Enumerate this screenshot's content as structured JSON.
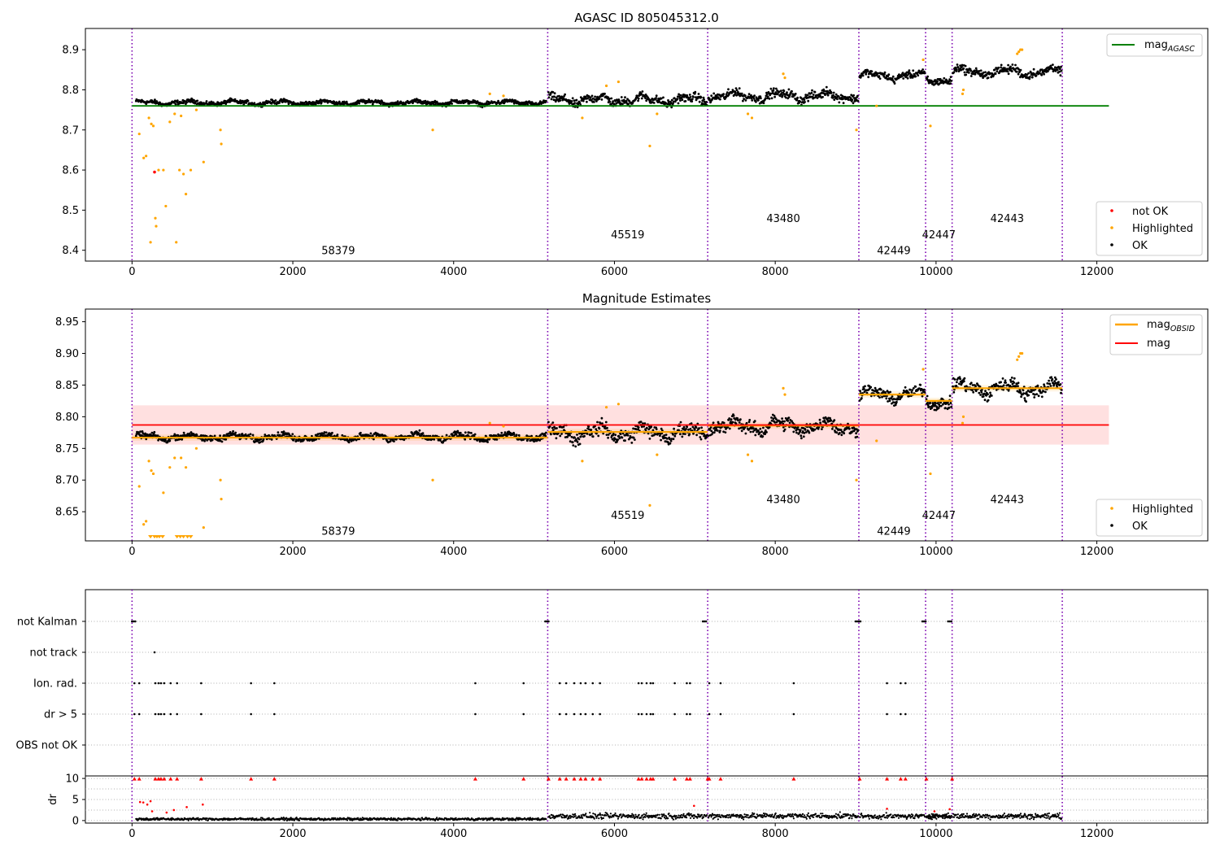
{
  "chart_data": [
    {
      "type": "scatter",
      "title": "AGASC ID 805045312.0",
      "xlim": [
        -580,
        13380
      ],
      "ylim": [
        8.373,
        8.953
      ],
      "xticks": [
        0,
        2000,
        4000,
        6000,
        8000,
        10000,
        12000
      ],
      "yticks": [
        8.4,
        8.5,
        8.6,
        8.7,
        8.8,
        8.9
      ],
      "ytick_labels": [
        "8.4",
        "8.5",
        "8.6",
        "8.7",
        "8.8",
        "8.9"
      ],
      "obs_boundaries": [
        0,
        5170,
        7160,
        9040,
        9870,
        10200,
        11570
      ],
      "obsids": [
        {
          "label": "58379",
          "x": 2565,
          "y": 8.4
        },
        {
          "label": "45519",
          "x": 6165,
          "y": 8.44
        },
        {
          "label": "43480",
          "x": 8100,
          "y": 8.48
        },
        {
          "label": "42449",
          "x": 9475,
          "y": 8.4
        },
        {
          "label": "42447",
          "x": 10035,
          "y": 8.44
        },
        {
          "label": "42443",
          "x": 10885,
          "y": 8.48
        }
      ],
      "reference_lines": [
        {
          "name": "mag",
          "sub": "AGASC",
          "y": 8.76,
          "x": [
            0,
            12150
          ],
          "color": "#008000"
        }
      ],
      "segments": [
        {
          "x0": 50,
          "x1": 5150,
          "center": 8.768,
          "spread": 0.006
        },
        {
          "x0": 5180,
          "x1": 7150,
          "center": 8.775,
          "spread": 0.013
        },
        {
          "x0": 7170,
          "x1": 9030,
          "center": 8.785,
          "spread": 0.013
        },
        {
          "x0": 9050,
          "x1": 9860,
          "center": 8.835,
          "spread": 0.011
        },
        {
          "x0": 9880,
          "x1": 10190,
          "center": 8.825,
          "spread": 0.011
        },
        {
          "x0": 10210,
          "x1": 11560,
          "center": 8.845,
          "spread": 0.013
        }
      ],
      "highlighted": [
        [
          90,
          8.69
        ],
        [
          145,
          8.63
        ],
        [
          175,
          8.635
        ],
        [
          210,
          8.73
        ],
        [
          240,
          8.715
        ],
        [
          265,
          8.71
        ],
        [
          290,
          8.48
        ],
        [
          300,
          8.46
        ],
        [
          330,
          8.6
        ],
        [
          390,
          8.6
        ],
        [
          420,
          8.51
        ],
        [
          230,
          8.42
        ],
        [
          550,
          8.42
        ],
        [
          590,
          8.6
        ],
        [
          640,
          8.59
        ],
        [
          670,
          8.54
        ],
        [
          730,
          8.6
        ],
        [
          530,
          8.74
        ],
        [
          470,
          8.72
        ],
        [
          610,
          8.735
        ],
        [
          800,
          8.75
        ],
        [
          890,
          8.62
        ],
        [
          1100,
          8.7
        ],
        [
          1110,
          8.665
        ],
        [
          3740,
          8.7
        ],
        [
          5600,
          8.73
        ],
        [
          6440,
          8.66
        ],
        [
          6530,
          8.74
        ],
        [
          7710,
          8.73
        ],
        [
          7660,
          8.74
        ],
        [
          8100,
          8.84
        ],
        [
          8120,
          8.83
        ],
        [
          9010,
          8.7
        ],
        [
          9260,
          8.76
        ],
        [
          9930,
          8.71
        ],
        [
          10330,
          8.79
        ],
        [
          10340,
          8.8
        ],
        [
          9840,
          8.875
        ],
        [
          11010,
          8.89
        ],
        [
          11030,
          8.895
        ],
        [
          11050,
          8.9
        ],
        [
          11070,
          8.9
        ],
        [
          5900,
          8.81
        ],
        [
          6050,
          8.82
        ],
        [
          4450,
          8.79
        ],
        [
          4620,
          8.785
        ]
      ],
      "not_ok": [
        [
          280,
          8.595
        ]
      ],
      "legend": [
        {
          "label": "not OK",
          "color": "#ff0000"
        },
        {
          "label": "Highlighted",
          "color": "#ffa500"
        },
        {
          "label": "OK",
          "color": "#000000"
        }
      ]
    },
    {
      "type": "scatter",
      "title": "Magnitude Estimates",
      "xlim": [
        -580,
        13380
      ],
      "ylim": [
        8.604,
        8.97
      ],
      "xticks": [
        0,
        2000,
        4000,
        6000,
        8000,
        10000,
        12000
      ],
      "yticks": [
        8.65,
        8.7,
        8.75,
        8.8,
        8.85,
        8.9,
        8.95
      ],
      "ytick_labels": [
        "8.65",
        "8.70",
        "8.75",
        "8.80",
        "8.85",
        "8.90",
        "8.95"
      ],
      "obs_boundaries": [
        0,
        5170,
        7160,
        9040,
        9870,
        10200,
        11570
      ],
      "obsids": [
        {
          "label": "58379",
          "x": 2565,
          "y": 8.62
        },
        {
          "label": "45519",
          "x": 6165,
          "y": 8.645
        },
        {
          "label": "43480",
          "x": 8100,
          "y": 8.67
        },
        {
          "label": "42449",
          "x": 9475,
          "y": 8.62
        },
        {
          "label": "42447",
          "x": 10035,
          "y": 8.645
        },
        {
          "label": "42443",
          "x": 10885,
          "y": 8.67
        }
      ],
      "mag": {
        "name": "mag",
        "y": 8.787,
        "band": [
          8.756,
          8.818
        ],
        "x": [
          0,
          12150
        ],
        "color": "#ff0000"
      },
      "mag_obsid": {
        "name": "mag",
        "sub": "OBSID",
        "color": "#ffa500",
        "steps": [
          {
            "x0": 0,
            "x1": 5170,
            "y": 8.767
          },
          {
            "x0": 5170,
            "x1": 7160,
            "y": 8.776
          },
          {
            "x0": 7160,
            "x1": 9040,
            "y": 8.786
          },
          {
            "x0": 9040,
            "x1": 9870,
            "y": 8.835
          },
          {
            "x0": 9870,
            "x1": 10200,
            "y": 8.825
          },
          {
            "x0": 10200,
            "x1": 11570,
            "y": 8.845
          }
        ]
      },
      "segments": [
        {
          "x0": 50,
          "x1": 5150,
          "center": 8.768,
          "spread": 0.006
        },
        {
          "x0": 5180,
          "x1": 7150,
          "center": 8.775,
          "spread": 0.013
        },
        {
          "x0": 7170,
          "x1": 9030,
          "center": 8.785,
          "spread": 0.013
        },
        {
          "x0": 9050,
          "x1": 9860,
          "center": 8.835,
          "spread": 0.011
        },
        {
          "x0": 9880,
          "x1": 10190,
          "center": 8.825,
          "spread": 0.011
        },
        {
          "x0": 10210,
          "x1": 11560,
          "center": 8.845,
          "spread": 0.013
        }
      ],
      "highlighted": [
        [
          90,
          8.69
        ],
        [
          145,
          8.63
        ],
        [
          175,
          8.635
        ],
        [
          210,
          8.73
        ],
        [
          240,
          8.715
        ],
        [
          265,
          8.71
        ],
        [
          390,
          8.68
        ],
        [
          470,
          8.72
        ],
        [
          530,
          8.735
        ],
        [
          610,
          8.735
        ],
        [
          670,
          8.72
        ],
        [
          800,
          8.75
        ],
        [
          890,
          8.625
        ],
        [
          1100,
          8.7
        ],
        [
          1110,
          8.67
        ],
        [
          3740,
          8.7
        ],
        [
          5600,
          8.73
        ],
        [
          6440,
          8.66
        ],
        [
          6530,
          8.74
        ],
        [
          7710,
          8.73
        ],
        [
          7660,
          8.74
        ],
        [
          8100,
          8.845
        ],
        [
          8120,
          8.835
        ],
        [
          9010,
          8.7
        ],
        [
          9260,
          8.762
        ],
        [
          9930,
          8.71
        ],
        [
          10330,
          8.79
        ],
        [
          10340,
          8.8
        ],
        [
          9840,
          8.875
        ],
        [
          11010,
          8.89
        ],
        [
          11030,
          8.895
        ],
        [
          11050,
          8.9
        ],
        [
          11070,
          8.9
        ],
        [
          5900,
          8.815
        ],
        [
          6050,
          8.82
        ],
        [
          4450,
          8.79
        ],
        [
          4620,
          8.785
        ]
      ],
      "highlighted_low": [
        230,
        280,
        310,
        340,
        380,
        560,
        600,
        640,
        690,
        730
      ],
      "legend": [
        {
          "label": "Highlighted",
          "color": "#ffa500"
        },
        {
          "label": "OK",
          "color": "#000000"
        }
      ]
    },
    {
      "type": "scatter",
      "title": "",
      "xlim": [
        -580,
        13380
      ],
      "xticks": [
        0,
        2000,
        4000,
        6000,
        8000,
        10000,
        12000
      ],
      "obs_boundaries": [
        0,
        5170,
        7160,
        9040,
        9870,
        10200,
        11570
      ],
      "flags": [
        {
          "label": "not Kalman",
          "x": [
            0,
            20,
            40,
            5140,
            5160,
            5180,
            7100,
            7120,
            7140,
            9000,
            9020,
            9040,
            9060,
            9830,
            9850,
            9870,
            10150,
            10170,
            10190
          ]
        },
        {
          "label": "not track",
          "x": [
            280
          ]
        },
        {
          "label": "Ion. rad.",
          "x": [
            30,
            90,
            290,
            330,
            360,
            400,
            480,
            560,
            860,
            1480,
            1770,
            4270,
            4870,
            5320,
            5400,
            5500,
            5580,
            5640,
            5730,
            5820,
            6300,
            6340,
            6400,
            6450,
            6480,
            6750,
            6900,
            6940,
            7180,
            7320,
            8230,
            9390,
            9560,
            9620
          ]
        },
        {
          "label": "dr > 5",
          "x": [
            30,
            90,
            290,
            330,
            360,
            400,
            480,
            560,
            860,
            1480,
            1770,
            4270,
            4870,
            5320,
            5400,
            5500,
            5580,
            5640,
            5730,
            5820,
            6300,
            6340,
            6400,
            6450,
            6480,
            6750,
            6900,
            6940,
            7180,
            7320,
            8230,
            9390,
            9560,
            9620
          ]
        },
        {
          "label": "OBS not OK",
          "x": []
        }
      ],
      "dr": {
        "ylabel": "dr",
        "ylim": [
          -0.6,
          10.6
        ],
        "yticks": [
          0,
          5,
          10
        ],
        "ytick_labels": [
          "0",
          "5",
          "10"
        ],
        "outliers": [
          [
            30,
            10
          ],
          [
            90,
            10
          ],
          [
            290,
            10
          ],
          [
            330,
            10
          ],
          [
            360,
            10
          ],
          [
            400,
            10
          ],
          [
            480,
            10
          ],
          [
            560,
            10
          ],
          [
            860,
            10
          ],
          [
            1480,
            10
          ],
          [
            1770,
            10
          ],
          [
            4270,
            10
          ],
          [
            4870,
            10
          ],
          [
            5320,
            10
          ],
          [
            5400,
            10
          ],
          [
            5500,
            10
          ],
          [
            5580,
            10
          ],
          [
            5640,
            10
          ],
          [
            5730,
            10
          ],
          [
            5820,
            10
          ],
          [
            6300,
            10
          ],
          [
            6340,
            10
          ],
          [
            6400,
            10
          ],
          [
            6450,
            10
          ],
          [
            6480,
            10
          ],
          [
            6750,
            10
          ],
          [
            6900,
            10
          ],
          [
            6940,
            10
          ],
          [
            7180,
            10
          ],
          [
            7320,
            10
          ],
          [
            8230,
            10
          ],
          [
            9390,
            10
          ],
          [
            9560,
            10
          ],
          [
            9620,
            10
          ],
          [
            5180,
            10
          ],
          [
            7160,
            10
          ],
          [
            9050,
            10
          ],
          [
            9880,
            10
          ],
          [
            10200,
            10
          ]
        ],
        "scatter_red": [
          [
            100,
            4.4
          ],
          [
            140,
            4.3
          ],
          [
            190,
            3.8
          ],
          [
            230,
            4.6
          ],
          [
            520,
            2.5
          ],
          [
            680,
            3.2
          ],
          [
            880,
            3.8
          ],
          [
            6990,
            3.5
          ],
          [
            9390,
            2.8
          ],
          [
            10170,
            2.7
          ],
          [
            9980,
            2.2
          ],
          [
            250,
            2.2
          ],
          [
            430,
            1.9
          ]
        ],
        "segments": [
          {
            "x0": 50,
            "x1": 5150,
            "center": 0.35,
            "spread": 0.25
          },
          {
            "x0": 5180,
            "x1": 7150,
            "center": 1.05,
            "spread": 0.55
          },
          {
            "x0": 7170,
            "x1": 9030,
            "center": 1.1,
            "spread": 0.55
          },
          {
            "x0": 9050,
            "x1": 9860,
            "center": 1.0,
            "spread": 0.5
          },
          {
            "x0": 9880,
            "x1": 10190,
            "center": 1.05,
            "spread": 0.5
          },
          {
            "x0": 10210,
            "x1": 11560,
            "center": 1.05,
            "spread": 0.55
          }
        ]
      }
    }
  ]
}
